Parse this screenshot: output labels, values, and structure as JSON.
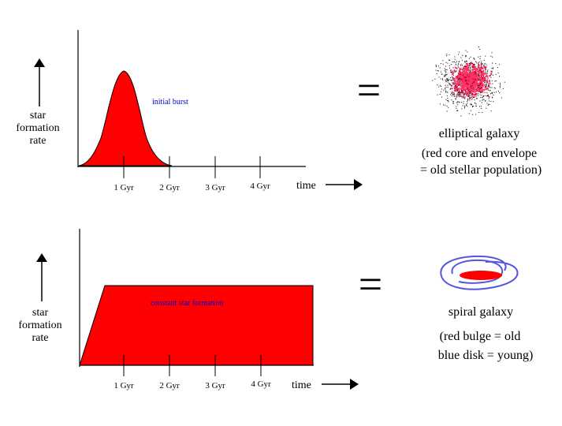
{
  "colors": {
    "red": "#ff0000",
    "black": "#000000",
    "blue": "#0000cc",
    "spiral_blue": "#5555dd",
    "galaxy_pink": "#ff3366"
  },
  "top_panel": {
    "ylabel": [
      "star",
      "formation",
      "rate"
    ],
    "ticks": [
      "1 Gyr",
      "2 Gyr",
      "3 Gyr",
      "4 Gyr"
    ],
    "time_label": "time",
    "annotation": "initial burst",
    "equals": "=",
    "galaxy_label": "elliptical galaxy",
    "description": [
      "(red core and envelope",
      "= old stellar population)"
    ]
  },
  "bottom_panel": {
    "ylabel": [
      "star",
      "formation",
      "rate"
    ],
    "ticks": [
      "1 Gyr",
      "2 Gyr",
      "3 Gyr",
      "4 Gyr"
    ],
    "time_label": "time",
    "annotation": "constant star formation",
    "equals": "=",
    "galaxy_label": "spiral galaxy",
    "description": [
      "(red bulge = old",
      "blue disk = young)"
    ]
  }
}
